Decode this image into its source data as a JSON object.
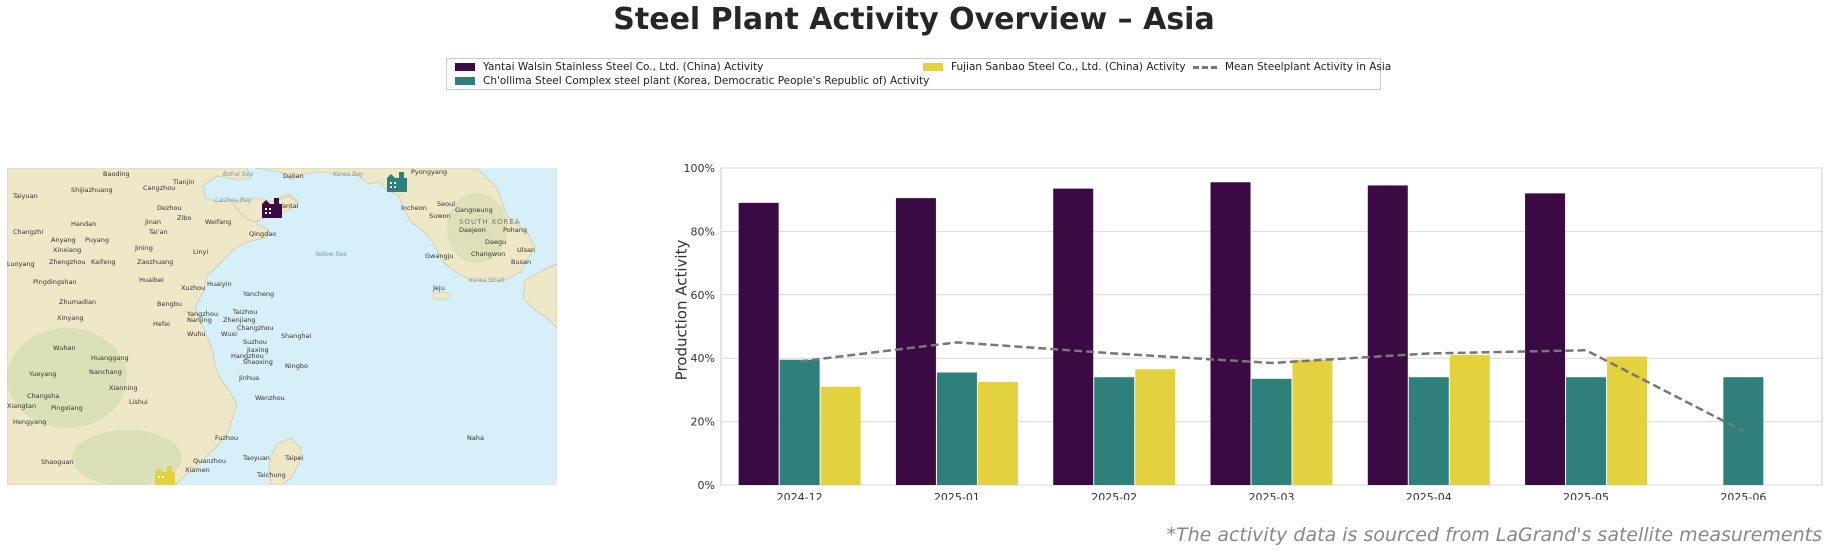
{
  "title": "Steel Plant Activity Overview – Asia",
  "footnote": "*The activity data is sourced from LaGrand's satellite measurements",
  "legend": {
    "items": [
      {
        "label": "Yantai Walsin Stainless Steel Co., Ltd. (China) Activity",
        "color": "#3b0a45"
      },
      {
        "label": "Ch'ollima Steel Complex steel plant (Korea, Democratic People's Republic of) Activity",
        "color": "#2e807b"
      },
      {
        "label": "Fujian Sanbao Steel Co., Ltd. (China) Activity",
        "color": "#e3d13d"
      },
      {
        "label": "Mean Steelplant Activity in Asia",
        "color": "#777777"
      }
    ]
  },
  "map": {
    "markers": [
      {
        "name": "yantai-walsin",
        "color": "#3b0a45"
      },
      {
        "name": "chollima",
        "color": "#2e807b"
      },
      {
        "name": "fujian-sanbao",
        "color": "#e3d13d"
      }
    ],
    "cities": [
      "Baoding",
      "Tianjin",
      "Shijiazhuang",
      "Cangzhou",
      "Taiyuan",
      "Dezhou",
      "Dalian",
      "Pyongyang",
      "Yantai",
      "Jinan",
      "Zibo",
      "Weifang",
      "Qingdao",
      "Handan",
      "Changzhi",
      "Anyang",
      "Puyang",
      "Xinxiang",
      "Jining",
      "Tai'an",
      "Linyi",
      "Zhengzhou",
      "Luoyang",
      "Kaifeng",
      "Pingdingshan",
      "Zaozhuang",
      "Huaibei",
      "Huaiyin",
      "Xuzhou",
      "Yancheng",
      "Zhumadian",
      "Bengbu",
      "Xinyang",
      "Yangzhou",
      "Taizhou",
      "Hefei",
      "Nanjing",
      "Zhenjiang",
      "Changzhou",
      "Wuhu",
      "Wuxi",
      "Suzhou",
      "Shanghai",
      "Hangzhou",
      "Shaoxing",
      "Ningbo",
      "Jiaxing",
      "Huanggang",
      "Wuhan",
      "Xianning",
      "Yueyang",
      "Changsha",
      "Pingxiang",
      "Hengyang",
      "Xiangtan",
      "Nanchang",
      "Jinhua",
      "Lishui",
      "Wenzhou",
      "Fuzhou",
      "Taoyuan",
      "Taipei",
      "Taichung",
      "Quanzhou",
      "Xiamen",
      "Shaoguan",
      "Incheon",
      "Seoul",
      "Suwon",
      "Gangneung",
      "Daejeon",
      "Pohang",
      "Daegu",
      "Gwangju",
      "Changwon",
      "Ulsan",
      "Busan",
      "Jeju",
      "Naha",
      "SOUTH KOREA",
      "Bohai Sea",
      "Korea Bay",
      "Laizhou Bay",
      "Yellow Sea",
      "Korea Strait"
    ]
  },
  "chart_data": {
    "type": "bar",
    "title": "",
    "xlabel": "",
    "ylabel": "Production Activity",
    "ylim": [
      0,
      100
    ],
    "yticks": [
      "0%",
      "20%",
      "40%",
      "60%",
      "80%",
      "100%"
    ],
    "grid": true,
    "legend_placement": "top-center",
    "categories": [
      "2024-12",
      "2025-01",
      "2025-02",
      "2025-03",
      "2025-04",
      "2025-05",
      "2025-06"
    ],
    "series": [
      {
        "name": "Yantai Walsin Stainless Steel Co., Ltd. (China) Activity",
        "type": "bar",
        "color": "#3b0a45",
        "values": [
          89,
          90.5,
          93.5,
          95.5,
          94.5,
          92,
          null
        ]
      },
      {
        "name": "Ch'ollima Steel Complex steel plant (Korea, Democratic People's Republic of) Activity",
        "type": "bar",
        "color": "#2e807b",
        "values": [
          39.5,
          35.5,
          34,
          33.5,
          34,
          34,
          34
        ]
      },
      {
        "name": "Fujian Sanbao Steel Co., Ltd. (China) Activity",
        "type": "bar",
        "color": "#e3d13d",
        "values": [
          31,
          32.5,
          36.5,
          39.5,
          41,
          40.5,
          null
        ]
      },
      {
        "name": "Mean Steelplant Activity in Asia",
        "type": "line",
        "style": "dashed",
        "color": "#777777",
        "values": [
          39,
          45,
          41.5,
          38.5,
          41.5,
          42.5,
          17
        ]
      }
    ]
  }
}
